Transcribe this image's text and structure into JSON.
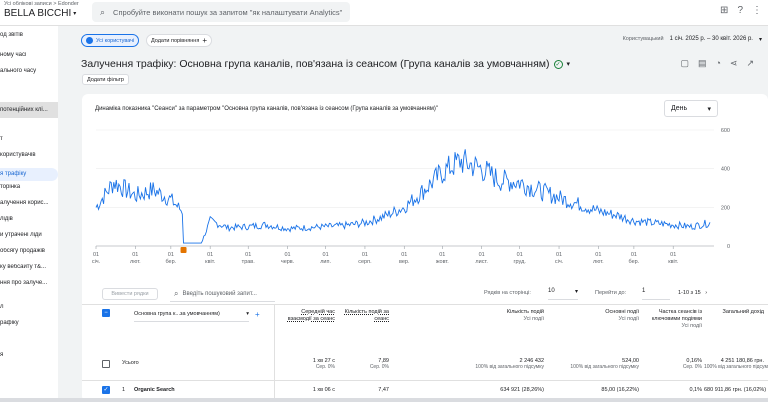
{
  "header": {
    "breadcrumb": "Усі облікові записи > Edonder",
    "property": "BELLA BICCHI",
    "search_placeholder": "Спробуйте виконати пошук за запитом \"як налаштувати Analytics\""
  },
  "leftnav": {
    "items": [
      {
        "label": "од звітів",
        "top": 6
      },
      {
        "label": "ному часі",
        "top": 26
      },
      {
        "label": "ального часу",
        "top": 42
      },
      {
        "label": "потенційних клі...",
        "top": 76
      },
      {
        "label": "т",
        "top": 110
      },
      {
        "label": "користувачів",
        "top": 126
      },
      {
        "label": "я трафіку",
        "top": 142
      },
      {
        "label": "торінка",
        "top": 158
      },
      {
        "label": "алучення корис...",
        "top": 174
      },
      {
        "label": "лідів",
        "top": 190
      },
      {
        "label": "й утрачені ліди",
        "top": 206
      },
      {
        "label": "обсягу продажів",
        "top": 222
      },
      {
        "label": "ку вебсайту т&...",
        "top": 238
      },
      {
        "label": "ння про залуче...",
        "top": 254
      },
      {
        "label": "л",
        "top": 278
      },
      {
        "label": "рафіку",
        "top": 294
      },
      {
        "label": "я",
        "top": 326
      }
    ]
  },
  "toolbar": {
    "segment_chip": "Усі користувачі",
    "compare_chip": "Додати порівняння",
    "date_label": "Користувацький",
    "date_range": "1 січ. 2025 р. – 30 квіт. 2026 р.",
    "page_title": "Залучення трафіку: Основна група каналів, пов'язана із сеансом (Група каналів за умовчанням)",
    "add_filter": "Додати фільтр"
  },
  "chart": {
    "title": "Динаміка показника \"Сеанси\" за параметром \"Основна група каналів, пов'язана із сеансом (Група каналів за умовчанням)\"",
    "granularity": "День"
  },
  "chart_data": {
    "type": "line",
    "ylim": [
      0,
      600
    ],
    "yticks": [
      "0",
      "200",
      "400",
      "600"
    ],
    "xticks": [
      {
        "day": "01",
        "month": "січ."
      },
      {
        "day": "01",
        "month": "лют."
      },
      {
        "day": "01",
        "month": "бер."
      },
      {
        "day": "01",
        "month": "квіт."
      },
      {
        "day": "01",
        "month": "трав."
      },
      {
        "day": "01",
        "month": "черв."
      },
      {
        "day": "01",
        "month": "лип."
      },
      {
        "day": "01",
        "month": "серп."
      },
      {
        "day": "01",
        "month": "вер."
      },
      {
        "day": "01",
        "month": "жовт."
      },
      {
        "day": "01",
        "month": "лист."
      },
      {
        "day": "01",
        "month": "груд."
      },
      {
        "day": "01",
        "month": "січ."
      },
      {
        "day": "01",
        "month": "лют."
      },
      {
        "day": "01",
        "month": "бер."
      },
      {
        "day": "01",
        "month": "квіт."
      }
    ],
    "x": [
      "2025-01-01",
      "2025-01-15",
      "2025-02-01",
      "2025-02-15",
      "2025-03-01",
      "2025-03-10",
      "2025-03-11",
      "2025-03-25",
      "2025-04-01",
      "2025-04-15",
      "2025-05-01",
      "2025-05-15",
      "2025-06-01",
      "2025-06-15",
      "2025-07-01",
      "2025-07-15",
      "2025-08-01",
      "2025-08-15",
      "2025-09-01",
      "2025-09-15",
      "2025-10-01",
      "2025-10-15",
      "2025-11-01",
      "2025-11-15",
      "2025-12-01",
      "2025-12-15",
      "2026-01-01",
      "2026-01-15",
      "2026-02-01",
      "2026-02-15",
      "2026-03-01",
      "2026-03-15",
      "2026-04-01",
      "2026-04-15",
      "2026-04-30"
    ],
    "series": [
      {
        "values": [
          200,
          330,
          260,
          290,
          240,
          180,
          15,
          15,
          130,
          95,
          100,
          110,
          90,
          95,
          100,
          105,
          120,
          150,
          200,
          280,
          380,
          440,
          400,
          340,
          330,
          290,
          250,
          220,
          180,
          160,
          130,
          120,
          110,
          100,
          120
        ]
      }
    ]
  },
  "table_toolbar": {
    "plot_rows": "Вивести рядки",
    "search_placeholder": "Введіть пошуковий запит...",
    "rows_per_page_label": "Рядків на сторінці:",
    "rows_per_page": "10",
    "goto_label": "Перейти до:",
    "goto_value": "1",
    "range": "1-10 з 15"
  },
  "table": {
    "dimension": "Основна група к...за умовчанням)",
    "columns": [
      {
        "label": "Середній час взаємодії за сеанс",
        "sub": ""
      },
      {
        "label": "Кількість подій за сеанс",
        "sub": ""
      },
      {
        "label": "Кількість подій",
        "sub": "Усі події"
      },
      {
        "label": "Основні події",
        "sub": "Усі події"
      },
      {
        "label": "Частка сеансів із ключовими подіями",
        "sub": "Усі події"
      },
      {
        "label": "Загальний дохід",
        "sub": ""
      }
    ],
    "total": {
      "label": "Усього",
      "cells": [
        {
          "value": "1 хв 27 с",
          "sub": "Сер. 0%"
        },
        {
          "value": "7,89",
          "sub": "Сер. 0%"
        },
        {
          "value": "2 246 432",
          "sub": "100% від загального підсумку"
        },
        {
          "value": "524,00",
          "sub": "100% від загального підсумку"
        },
        {
          "value": "0,16%",
          "sub": "Сер. 0%"
        },
        {
          "value": "4 251 180,86 грн.",
          "sub": "100% від загального підсумку"
        }
      ]
    },
    "rows": [
      {
        "index": "1",
        "channel": "Organic Search",
        "cells": [
          "1 хв 06 с",
          "7,47",
          "634 921 (28,26%)",
          "85,00 (16,22%)",
          "0,1%",
          "680 911,86 грн. (16,02%)"
        ]
      }
    ]
  },
  "colors": {
    "accent": "#1a73e8",
    "line": "#1a73e8",
    "anomaly": "#e37400"
  }
}
